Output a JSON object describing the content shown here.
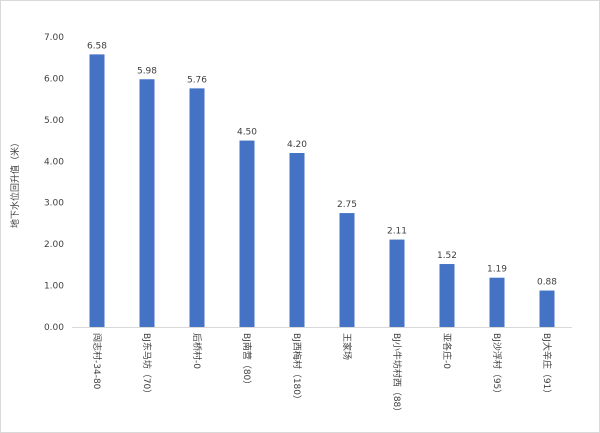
{
  "chart_data": {
    "type": "bar",
    "title": "",
    "xlabel": "",
    "ylabel": "地下水位回升值（米）",
    "ylim": [
      0,
      7
    ],
    "ytick_step": 1,
    "ytick_decimals": 2,
    "grid": false,
    "legend": "none",
    "bar_color": "#4472c4",
    "categories": [
      "闯志村-34-80",
      "BJ东马坊（70）",
      "后桥村-0",
      "BJ南营（80）",
      "BJ西梅村（180）",
      "王家场",
      "BJ小牛坊村西（88）",
      "亚各庄-0",
      "BJ沙浮村（95）",
      "BJ大辛庄（91）"
    ],
    "values": [
      6.58,
      5.98,
      5.76,
      4.5,
      4.2,
      2.75,
      2.11,
      1.52,
      1.19,
      0.88
    ],
    "value_labels": [
      "6.58",
      "5.98",
      "5.76",
      "4.50",
      "4.20",
      "2.75",
      "2.11",
      "1.52",
      "1.19",
      "0.88"
    ]
  }
}
